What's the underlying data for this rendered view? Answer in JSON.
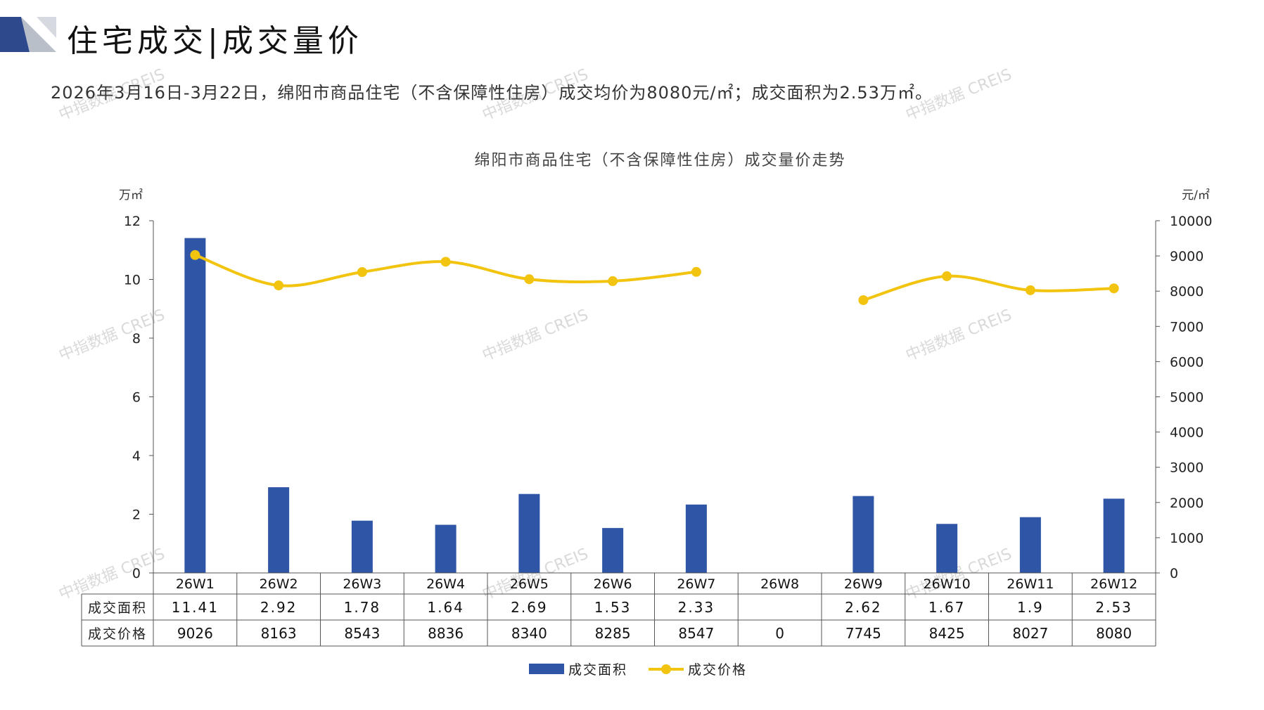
{
  "header": {
    "title": "住宅成交|成交量价",
    "summary": "2026年3月16日-3月22日，绵阳市商品住宅（不含保障性住房）成交均价为8080元/㎡；成交面积为2.53万㎡。"
  },
  "watermark": "中指数据 CREIS",
  "colors": {
    "bar": "#2E55A6",
    "line": "#F2C40F",
    "logo_dark": "#2E4A8C",
    "logo_light": "#B9BFC8"
  },
  "chart_data": {
    "type": "bar+line",
    "title": "绵阳市商品住宅（不含保障性住房）成交量价走势",
    "categories": [
      "26W1",
      "26W2",
      "26W3",
      "26W4",
      "26W5",
      "26W6",
      "26W7",
      "26W8",
      "26W9",
      "26W10",
      "26W11",
      "26W12"
    ],
    "y_left": {
      "unit": "万㎡",
      "range": [
        0,
        12
      ],
      "ticks": [
        0,
        2,
        4,
        6,
        8,
        10,
        12
      ]
    },
    "y_right": {
      "unit": "元/㎡",
      "range": [
        0,
        10000
      ],
      "ticks": [
        0,
        1000,
        2000,
        3000,
        4000,
        5000,
        6000,
        7000,
        8000,
        9000,
        10000
      ]
    },
    "series": [
      {
        "name": "成交面积",
        "type": "bar",
        "axis": "left",
        "values": [
          11.41,
          2.92,
          1.78,
          1.64,
          2.69,
          1.53,
          2.33,
          null,
          2.62,
          1.67,
          1.9,
          2.53
        ],
        "labels": [
          "11.41",
          "2.92",
          "1.78",
          "1.64",
          "2.69",
          "1.53",
          "2.33",
          "",
          "2.62",
          "1.67",
          "1.9",
          "2.53"
        ]
      },
      {
        "name": "成交价格",
        "type": "line",
        "axis": "right",
        "values": [
          9026,
          8163,
          8543,
          8836,
          8340,
          8285,
          8547,
          0,
          7745,
          8425,
          8027,
          8080
        ],
        "labels": [
          "9026",
          "8163",
          "8543",
          "8836",
          "8340",
          "8285",
          "8547",
          "0",
          "7745",
          "8425",
          "8027",
          "8080"
        ]
      }
    ],
    "legend_position": "bottom",
    "data_table": true
  }
}
